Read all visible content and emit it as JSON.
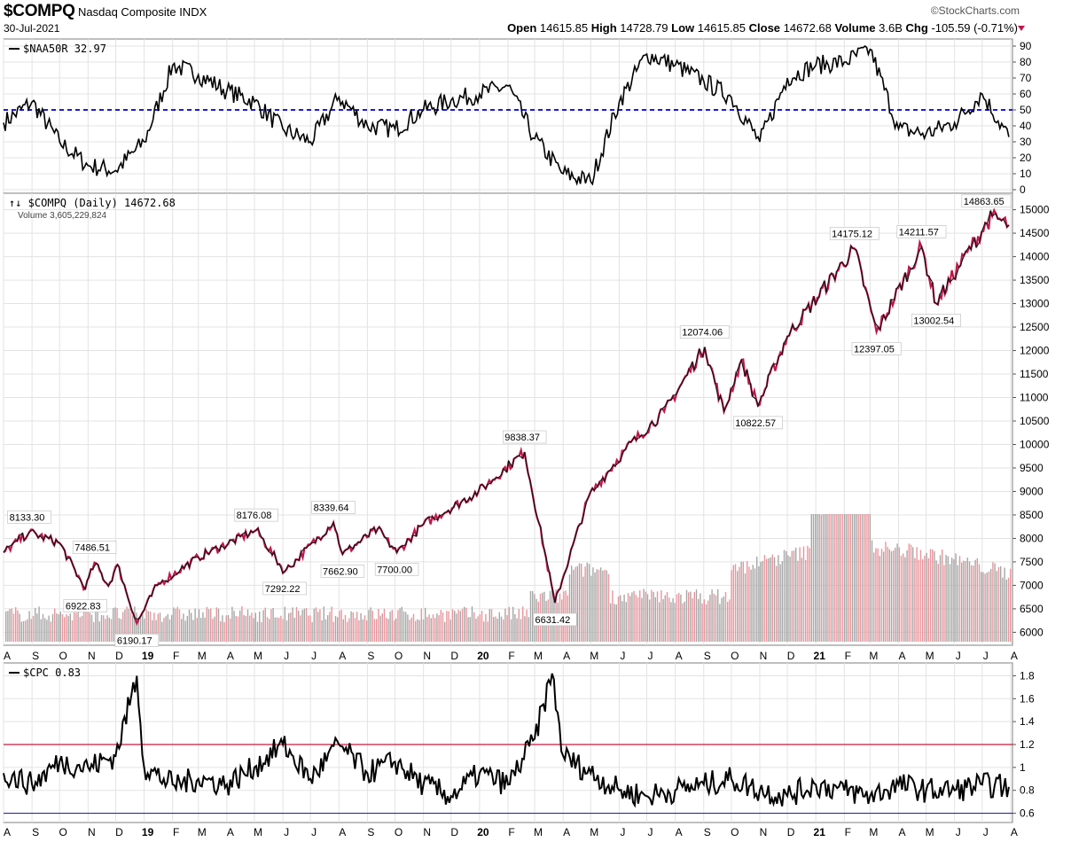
{
  "header": {
    "symbol": "$COMPQ",
    "name": "Nasdaq Composite",
    "exchange": "INDX",
    "date": "30-Jul-2021",
    "brand": "©StockCharts.com",
    "open_label": "Open",
    "open": "14615.85",
    "high_label": "High",
    "high": "14728.79",
    "low_label": "Low",
    "low": "14615.85",
    "close_label": "Close",
    "close": "14672.68",
    "volume_label": "Volume",
    "volume": "3.6B",
    "chg_label": "Chg",
    "chg": "-105.59 (-0.71%)",
    "down_color": "#c0174a"
  },
  "chart_data": [
    {
      "type": "line",
      "panel": "upper indicator",
      "title": "$NAA50R 32.97",
      "ylim": [
        0,
        90
      ],
      "yticks": [
        0,
        10,
        20,
        30,
        40,
        50,
        60,
        70,
        80,
        90
      ],
      "reference_lines": [
        {
          "value": 50,
          "style": "dashed",
          "color": "#1a1adb"
        }
      ],
      "x": [
        "2018-08",
        "2018-09",
        "2018-10",
        "2018-11",
        "2018-12",
        "2019-01",
        "2019-02",
        "2019-03",
        "2019-04",
        "2019-05",
        "2019-06",
        "2019-07",
        "2019-08",
        "2019-09",
        "2019-10",
        "2019-11",
        "2019-12",
        "2020-01",
        "2020-02",
        "2020-03",
        "2020-04",
        "2020-05",
        "2020-06",
        "2020-07",
        "2020-08",
        "2020-09",
        "2020-10",
        "2020-11",
        "2020-12",
        "2021-01",
        "2021-02",
        "2021-03",
        "2021-04",
        "2021-05",
        "2021-06",
        "2021-07",
        "2021-07-30"
      ],
      "series": [
        {
          "values": [
            42,
            55,
            30,
            15,
            12,
            30,
            78,
            72,
            62,
            55,
            38,
            30,
            58,
            40,
            38,
            50,
            56,
            60,
            65,
            32,
            10,
            5,
            55,
            85,
            78,
            68,
            58,
            30,
            70,
            78,
            80,
            88,
            38,
            35,
            42,
            60,
            33
          ]
        }
      ],
      "xtick_labels": [
        "A",
        "S",
        "O",
        "N",
        "D",
        "19",
        "F",
        "M",
        "A",
        "M",
        "J",
        "J",
        "A",
        "S",
        "O",
        "N",
        "D",
        "20",
        "F",
        "M",
        "A",
        "M",
        "J",
        "J",
        "A",
        "S",
        "O",
        "N",
        "D",
        "21",
        "F",
        "M",
        "A",
        "M",
        "J",
        "J",
        "A"
      ]
    },
    {
      "type": "line",
      "panel": "price",
      "title": "$COMPQ (Daily) 14672.68",
      "volume_label": "Volume 3,605,229,824",
      "ylim": [
        5800,
        15200
      ],
      "yticks": [
        6000,
        6500,
        7000,
        7500,
        8000,
        8500,
        9000,
        9500,
        10000,
        10500,
        11000,
        11500,
        12000,
        12500,
        13000,
        13500,
        14000,
        14500,
        15000
      ],
      "x": [
        "2018-08-01",
        "2018-08-29",
        "2018-10-01",
        "2018-10-29",
        "2018-11-08",
        "2018-11-23",
        "2018-12-03",
        "2018-12-24",
        "2019-01-15",
        "2019-03-01",
        "2019-05-03",
        "2019-06-03",
        "2019-07-26",
        "2019-08-05",
        "2019-09-12",
        "2019-10-03",
        "2019-11-01",
        "2019-12-31",
        "2020-02-19",
        "2020-03-23",
        "2020-04-29",
        "2020-06-08",
        "2020-07-20",
        "2020-09-02",
        "2020-09-23",
        "2020-10-12",
        "2020-10-30",
        "2020-12-01",
        "2021-02-12",
        "2021-03-08",
        "2021-04-26",
        "2021-05-12",
        "2021-06-15",
        "2021-07-12",
        "2021-07-30"
      ],
      "series": [
        {
          "name": "$COMPQ",
          "values": [
            7700,
            8133.3,
            7900,
            6922.83,
            7486.51,
            6990,
            7440,
            6190.17,
            7000,
            7600,
            8176.08,
            7292.22,
            8339.64,
            7662.9,
            8200,
            7700.0,
            8300,
            9000,
            9838.37,
            6631.42,
            8900,
            9900,
            10700,
            12074.06,
            10700,
            11800,
            10822.57,
            12300,
            14175.12,
            12397.05,
            14211.57,
            13002.54,
            14100,
            14863.65,
            14672.68
          ]
        }
      ],
      "annotations": [
        {
          "text": "8133.30",
          "x": "2018-08-29",
          "value": 8133.3
        },
        {
          "text": "6922.83",
          "x": "2018-10-29",
          "value": 6922.83
        },
        {
          "text": "7486.51",
          "x": "2018-11-08",
          "value": 7486.51
        },
        {
          "text": "6190.17",
          "x": "2018-12-24",
          "value": 6190.17
        },
        {
          "text": "8176.08",
          "x": "2019-05-03",
          "value": 8176.08
        },
        {
          "text": "7292.22",
          "x": "2019-06-03",
          "value": 7292.22
        },
        {
          "text": "8339.64",
          "x": "2019-07-26",
          "value": 8339.64
        },
        {
          "text": "7662.90",
          "x": "2019-08-05",
          "value": 7662.9
        },
        {
          "text": "7700.00",
          "x": "2019-10-03",
          "value": 7700.0
        },
        {
          "text": "9838.37",
          "x": "2020-02-19",
          "value": 9838.37
        },
        {
          "text": "6631.42",
          "x": "2020-03-23",
          "value": 6631.42
        },
        {
          "text": "12074.06",
          "x": "2020-09-02",
          "value": 12074.06
        },
        {
          "text": "10822.57",
          "x": "2020-10-30",
          "value": 10822.57
        },
        {
          "text": "14175.12",
          "x": "2021-02-12",
          "value": 14175.12
        },
        {
          "text": "12397.05",
          "x": "2021-03-08",
          "value": 12397.05
        },
        {
          "text": "14211.57",
          "x": "2021-04-26",
          "value": 14211.57
        },
        {
          "text": "13002.54",
          "x": "2021-05-12",
          "value": 13002.54
        },
        {
          "text": "14863.65",
          "x": "2021-07-12",
          "value": 14863.65
        }
      ],
      "volume_colors": {
        "up": "#a6a6a6",
        "down": "#e8959c"
      },
      "xtick_labels": [
        "A",
        "S",
        "O",
        "N",
        "D",
        "19",
        "F",
        "M",
        "A",
        "M",
        "J",
        "J",
        "A",
        "S",
        "O",
        "N",
        "D",
        "20",
        "F",
        "M",
        "A",
        "M",
        "J",
        "J",
        "A",
        "S",
        "O",
        "N",
        "D",
        "21",
        "F",
        "M",
        "A",
        "M",
        "J",
        "J",
        "A"
      ]
    },
    {
      "type": "line",
      "panel": "lower indicator",
      "title": "$CPC 0.83",
      "ylim": [
        0.55,
        1.85
      ],
      "yticks": [
        0.6,
        0.8,
        1.0,
        1.2,
        1.4,
        1.6,
        1.8
      ],
      "reference_lines": [
        {
          "value": 1.2,
          "color": "#c8193c"
        },
        {
          "value": 0.6,
          "color": "#2a2aa8"
        }
      ],
      "x": [
        "2018-08",
        "2018-09",
        "2018-10",
        "2018-11",
        "2018-12",
        "2018-12-24",
        "2019-01",
        "2019-02",
        "2019-03",
        "2019-04",
        "2019-05",
        "2019-06",
        "2019-07",
        "2019-08",
        "2019-09",
        "2019-10",
        "2019-11",
        "2019-12",
        "2020-01",
        "2020-02",
        "2020-03",
        "2020-03-20",
        "2020-04",
        "2020-05",
        "2020-06",
        "2020-07",
        "2020-08",
        "2020-09",
        "2020-10",
        "2020-11",
        "2020-12",
        "2021-01",
        "2021-02",
        "2021-03",
        "2021-04",
        "2021-05",
        "2021-06",
        "2021-07",
        "2021-07-30"
      ],
      "series": [
        {
          "values": [
            0.95,
            0.85,
            1.05,
            1.0,
            1.1,
            1.8,
            1.0,
            0.85,
            0.9,
            0.85,
            1.0,
            1.2,
            0.9,
            1.2,
            0.95,
            1.05,
            0.85,
            0.75,
            0.95,
            0.85,
            1.25,
            1.82,
            1.1,
            0.95,
            0.8,
            0.75,
            0.8,
            0.85,
            0.9,
            0.8,
            0.75,
            0.85,
            0.8,
            0.75,
            0.85,
            0.8,
            0.8,
            0.85,
            0.83
          ]
        }
      ],
      "xtick_labels": [
        "A",
        "S",
        "O",
        "N",
        "D",
        "19",
        "F",
        "M",
        "A",
        "M",
        "J",
        "J",
        "A",
        "S",
        "O",
        "N",
        "D",
        "20",
        "F",
        "M",
        "A",
        "M",
        "J",
        "J",
        "A",
        "S",
        "O",
        "N",
        "D",
        "21",
        "F",
        "M",
        "A",
        "M",
        "J",
        "J",
        "A"
      ]
    }
  ]
}
